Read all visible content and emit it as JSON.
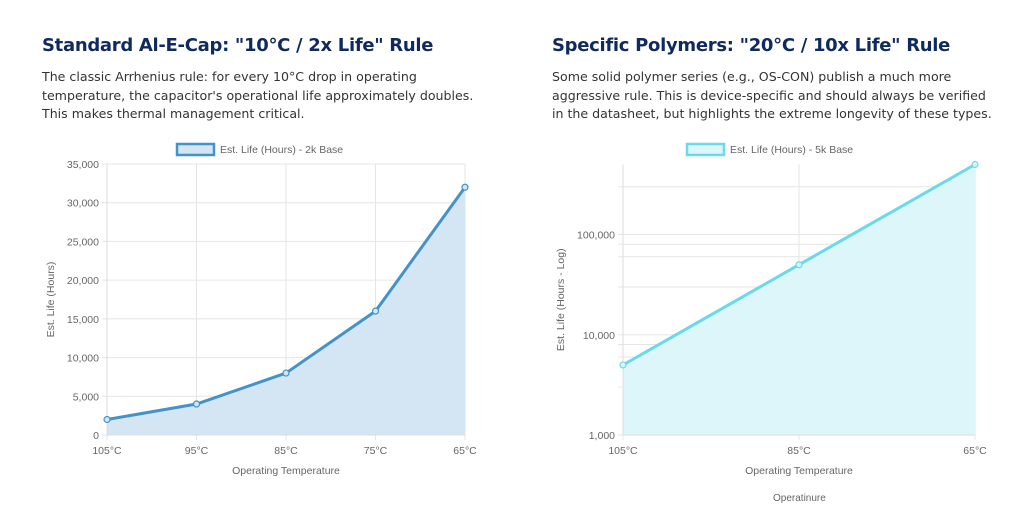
{
  "left": {
    "title": "Standard Al-E-Cap: \"10°C / 2x Life\" Rule",
    "description": "The classic Arrhenius rule: for every 10°C drop in operating temperature, the capacitor's operational life approximately doubles. This makes thermal management critical."
  },
  "right": {
    "title": "Specific Polymers: \"20°C / 10x Life\" Rule",
    "description": "Some solid polymer series (e.g., OS-CON) publish a much more aggressive rule. This is device-specific and should always be verified in the datasheet, but highlights the extreme longevity of these types.",
    "stray_label": "Operatinure"
  },
  "chart_data": [
    {
      "type": "area",
      "categories": [
        "105°C",
        "95°C",
        "85°C",
        "75°C",
        "65°C"
      ],
      "series": [
        {
          "name": "Est. Life (Hours) - 2k Base",
          "values": [
            2000,
            4000,
            8000,
            16000,
            32000
          ]
        }
      ],
      "xlabel": "Operating Temperature",
      "ylabel": "Est. Life (Hours)",
      "ylim": [
        0,
        35000
      ],
      "yticks": [
        0,
        5000,
        10000,
        15000,
        20000,
        25000,
        30000,
        35000
      ],
      "ytick_labels": [
        "0",
        "5,000",
        "10,000",
        "15,000",
        "20,000",
        "25,000",
        "30,000",
        "35,000"
      ],
      "scale": "linear",
      "grid": true,
      "legend": "top",
      "color": "#4393c8",
      "fill": "#d4e5f3"
    },
    {
      "type": "area",
      "categories": [
        "105°C",
        "85°C",
        "65°C"
      ],
      "series": [
        {
          "name": "Est. Life (Hours) - 5k Base",
          "values": [
            5000,
            50000,
            500000
          ]
        }
      ],
      "xlabel": "Operating Temperature",
      "ylabel": "Est. Life (Hours - Log)",
      "ylim": [
        1000,
        500000
      ],
      "yticks": [
        1000,
        10000,
        100000
      ],
      "ytick_labels": [
        "1,000",
        "10,000",
        "100,000"
      ],
      "scale": "log",
      "grid": true,
      "legend": "top",
      "color": "#6ad9ec",
      "fill": "#dcf6fa"
    }
  ]
}
